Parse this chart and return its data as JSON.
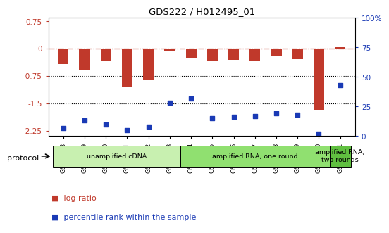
{
  "title": "GDS222 / H012495_01",
  "samples": [
    "GSM4848",
    "GSM4849",
    "GSM4850",
    "GSM4851",
    "GSM4852",
    "GSM4853",
    "GSM4854",
    "GSM4855",
    "GSM4856",
    "GSM4857",
    "GSM4858",
    "GSM4859",
    "GSM4860",
    "GSM4861"
  ],
  "log_ratio": [
    -0.42,
    -0.6,
    -0.35,
    -1.05,
    -0.85,
    -0.06,
    -0.25,
    -0.35,
    -0.3,
    -0.32,
    -0.18,
    -0.28,
    -1.68,
    0.05
  ],
  "percentile_rank": [
    7,
    13,
    10,
    5,
    8,
    28,
    32,
    15,
    16,
    17,
    19,
    18,
    2,
    43
  ],
  "bar_color": "#c0392b",
  "dot_color": "#1a3ab5",
  "ref_line_color": "#c0392b",
  "ylim_left": [
    -2.4,
    0.85
  ],
  "ylim_right": [
    0,
    100
  ],
  "yticks_left": [
    0.75,
    0,
    -0.75,
    -1.5,
    -2.25
  ],
  "yticks_right": [
    100,
    75,
    50,
    25,
    0
  ],
  "ytick_right_labels": [
    "100%",
    "75",
    "50",
    "25",
    "0"
  ],
  "protocols": [
    {
      "label": "unamplified cDNA",
      "start": 0,
      "end": 6,
      "color": "#c8f0b0"
    },
    {
      "label": "amplified RNA, one round",
      "start": 6,
      "end": 13,
      "color": "#90e070"
    },
    {
      "label": "amplified RNA,\ntwo rounds",
      "start": 13,
      "end": 14,
      "color": "#60c040"
    }
  ],
  "protocol_label": "protocol",
  "background_color": "#ffffff"
}
